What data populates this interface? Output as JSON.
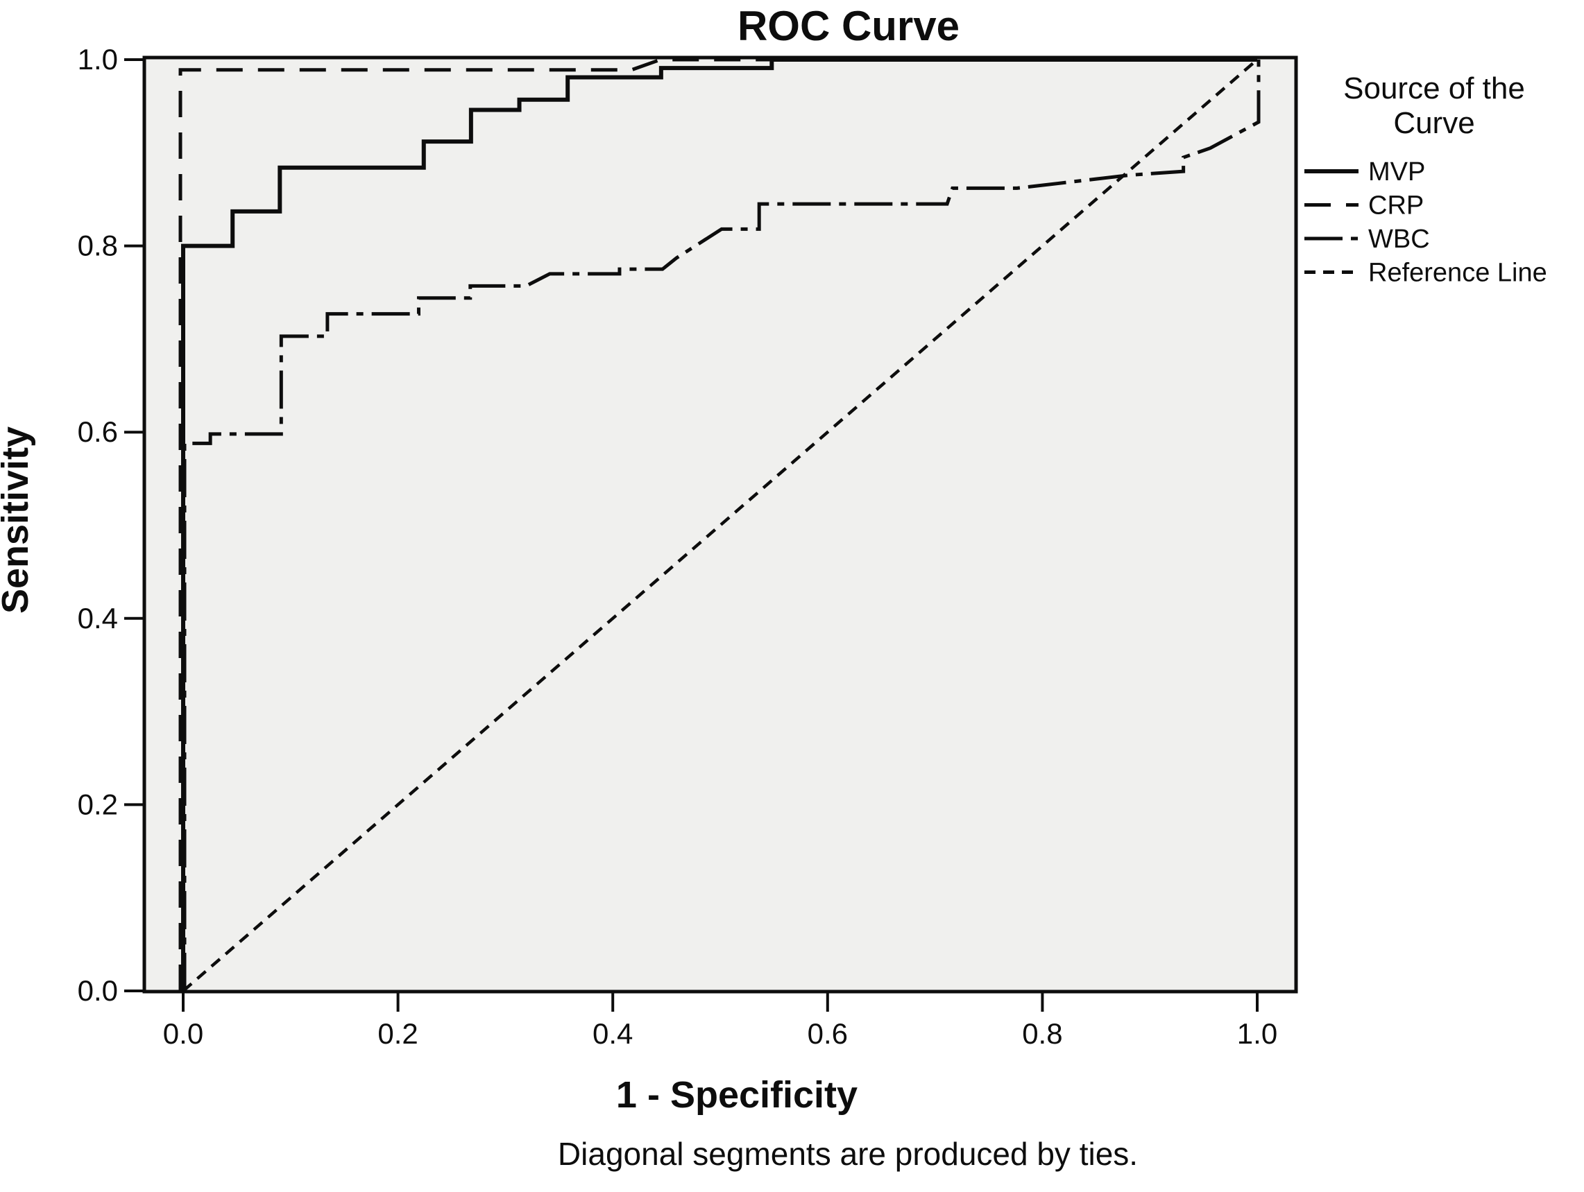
{
  "figure": {
    "title": "ROC Curve",
    "x_axis_label": "1 - Specificity",
    "y_axis_label": "Sensitivity",
    "footnote": "Diagonal segments are produced by ties.",
    "plot_background_color": "#f0f0ee",
    "line_color": "#0d0d0d"
  },
  "legend": {
    "title_line1": "Source of the",
    "title_line2": "Curve",
    "items": [
      {
        "label": "MVP",
        "style": "solid"
      },
      {
        "label": "CRP",
        "style": "long-dash"
      },
      {
        "label": "WBC",
        "style": "dash-dot"
      },
      {
        "label": "Reference Line",
        "style": "short-dash"
      }
    ]
  },
  "chart_data": {
    "type": "line",
    "title": "ROC Curve",
    "xlabel": "1 - Specificity",
    "ylabel": "Sensitivity",
    "xlim": [
      0,
      1
    ],
    "ylim": [
      0,
      1
    ],
    "grid": false,
    "legend_position": "right",
    "x_ticks": [
      "0.0",
      "0.2",
      "0.4",
      "0.6",
      "0.8",
      "1.0"
    ],
    "y_ticks": [
      "0.0",
      "0.2",
      "0.4",
      "0.6",
      "0.8",
      "1.0"
    ],
    "series": [
      {
        "name": "MVP",
        "style": "solid",
        "points": [
          [
            0,
            0
          ],
          [
            0,
            0.8
          ],
          [
            0.046,
            0.8
          ],
          [
            0.046,
            0.837
          ],
          [
            0.09,
            0.837
          ],
          [
            0.09,
            0.884
          ],
          [
            0.224,
            0.884
          ],
          [
            0.224,
            0.912
          ],
          [
            0.268,
            0.912
          ],
          [
            0.268,
            0.946
          ],
          [
            0.313,
            0.946
          ],
          [
            0.313,
            0.957
          ],
          [
            0.358,
            0.957
          ],
          [
            0.358,
            0.981
          ],
          [
            0.445,
            0.981
          ],
          [
            0.445,
            0.991
          ],
          [
            0.548,
            0.991
          ],
          [
            0.548,
            1
          ],
          [
            1,
            1
          ]
        ]
      },
      {
        "name": "CRP",
        "style": "long-dash",
        "points": [
          [
            0,
            0
          ],
          [
            0,
            0.989
          ],
          [
            0.42,
            0.989
          ],
          [
            0.447,
            1
          ],
          [
            1,
            1
          ]
        ]
      },
      {
        "name": "WBC",
        "style": "dash-dot",
        "points": [
          [
            0,
            0
          ],
          [
            0,
            0.588
          ],
          [
            0.024,
            0.588
          ],
          [
            0.024,
            0.598
          ],
          [
            0.09,
            0.598
          ],
          [
            0.09,
            0.703
          ],
          [
            0.133,
            0.703
          ],
          [
            0.133,
            0.727
          ],
          [
            0.218,
            0.727
          ],
          [
            0.218,
            0.744
          ],
          [
            0.266,
            0.744
          ],
          [
            0.266,
            0.757
          ],
          [
            0.318,
            0.757
          ],
          [
            0.34,
            0.77
          ],
          [
            0.405,
            0.77
          ],
          [
            0.405,
            0.775
          ],
          [
            0.445,
            0.775
          ],
          [
            0.458,
            0.787
          ],
          [
            0.5,
            0.818
          ],
          [
            0.535,
            0.818
          ],
          [
            0.535,
            0.845
          ],
          [
            0.71,
            0.845
          ],
          [
            0.715,
            0.862
          ],
          [
            0.775,
            0.862
          ],
          [
            0.85,
            0.872
          ],
          [
            0.88,
            0.876
          ],
          [
            0.93,
            0.88
          ],
          [
            0.93,
            0.895
          ],
          [
            0.955,
            0.905
          ],
          [
            1,
            0.933
          ],
          [
            1,
            1
          ]
        ]
      },
      {
        "name": "Reference Line",
        "style": "short-dash",
        "points": [
          [
            0,
            0
          ],
          [
            1,
            1
          ]
        ]
      }
    ]
  }
}
